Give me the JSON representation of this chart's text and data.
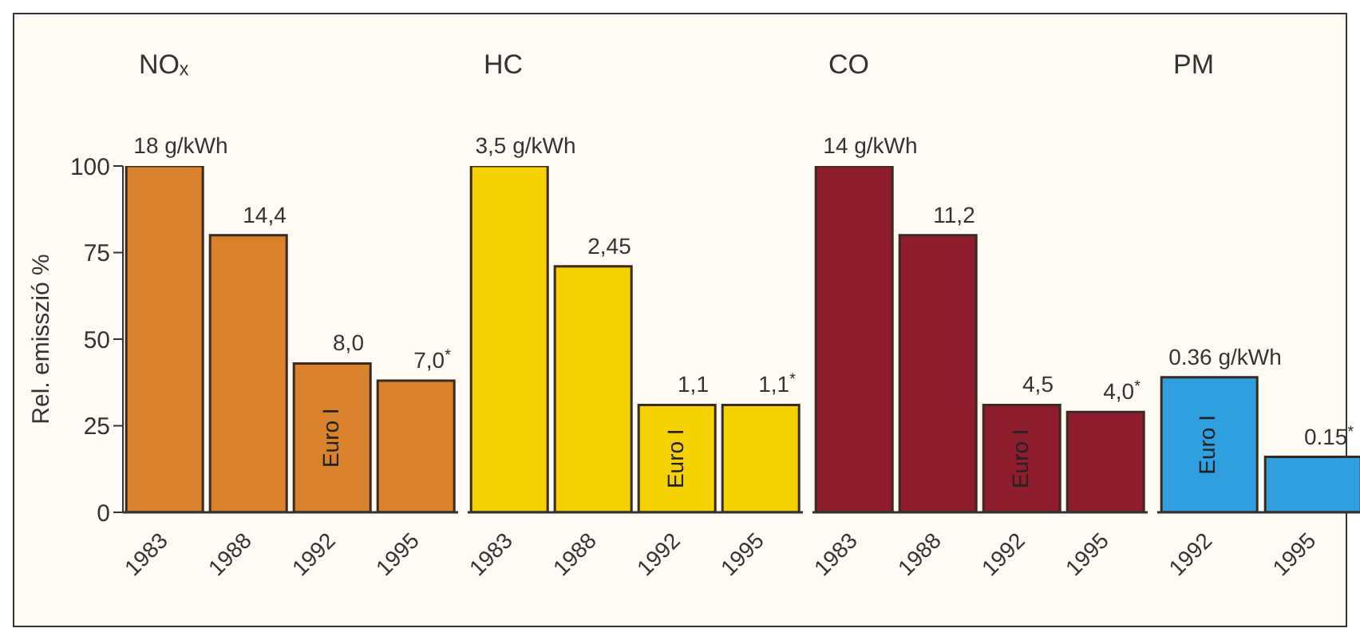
{
  "chart_data": [
    {
      "type": "bar",
      "title": "NOₓ",
      "ylabel": "Rel. emisszió %",
      "categories": [
        "1983",
        "1988",
        "1992",
        "1995"
      ],
      "values": [
        100,
        80,
        43,
        38
      ],
      "color": "#d9822b",
      "ylim": [
        0,
        100
      ],
      "yticks": [
        0,
        25,
        50,
        75,
        100
      ],
      "annotations": [
        {
          "text": "18 g/kWh",
          "x": "1983",
          "y": 100
        },
        {
          "text": "14,4",
          "x": "1988",
          "y": 80
        },
        {
          "text": "8,0",
          "x": "1992",
          "y": 43
        },
        {
          "text": "7,0$^{*}$",
          "x": "1995",
          "y": 38
        },
        "Euro I"
      ]
    },
    {
      "type": "bar",
      "title": "HC",
      "categories": [
        "1983",
        "1988",
        "1992",
        "1995"
      ],
      "values": [
        100,
        71,
        31,
        31
      ],
      "color": "#f5d100",
      "ylim": [
        0,
        100
      ],
      "tick_labels": "x",
      "annotations": [
        {
          "text": "3,5 g/kWh",
          "x": "1983",
          "y": 100
        },
        {
          "text": "2,45",
          "x": "1988",
          "y": 71
        },
        {
          "text": "1,1",
          "x": "1992",
          "y": 31
        },
        {
          "text": "1,1$^{*}$",
          "x": "1995",
          "y": 31
        },
        "Euro I"
      ]
    },
    {
      "type": "bar",
      "title": "CO",
      "categories": [
        "1983",
        "1988",
        "1992",
        "1995"
      ],
      "values": [
        100,
        80,
        31,
        29
      ],
      "color": "#8e1c2c",
      "ylim": [
        0,
        100
      ],
      "tick_labels": "x",
      "annotations": [
        {
          "text": "14 g/kWh",
          "x": "1983",
          "y": 100
        },
        {
          "text": "11,2",
          "x": "1988",
          "y": 80
        },
        {
          "text": "4,5",
          "x": "1992",
          "y": 31
        },
        {
          "text": "4,0$^{*}$",
          "x": "1995",
          "y": 29
        },
        "Euro I"
      ]
    },
    {
      "type": "bar",
      "title": "PM",
      "categories": [
        "1992",
        "1995"
      ],
      "values": [
        39,
        16
      ],
      "color": "#2f9fe0",
      "ylim": [
        0,
        100
      ],
      "tick_labels": "x",
      "annotations": [
        {
          "text": "0.36 g/kWh",
          "x": "1992",
          "y": 39
        },
        {
          "text": "0.15$^{*}$",
          "x": "1995",
          "y": 16
        },
        "Euro I"
      ]
    }
  ]
}
